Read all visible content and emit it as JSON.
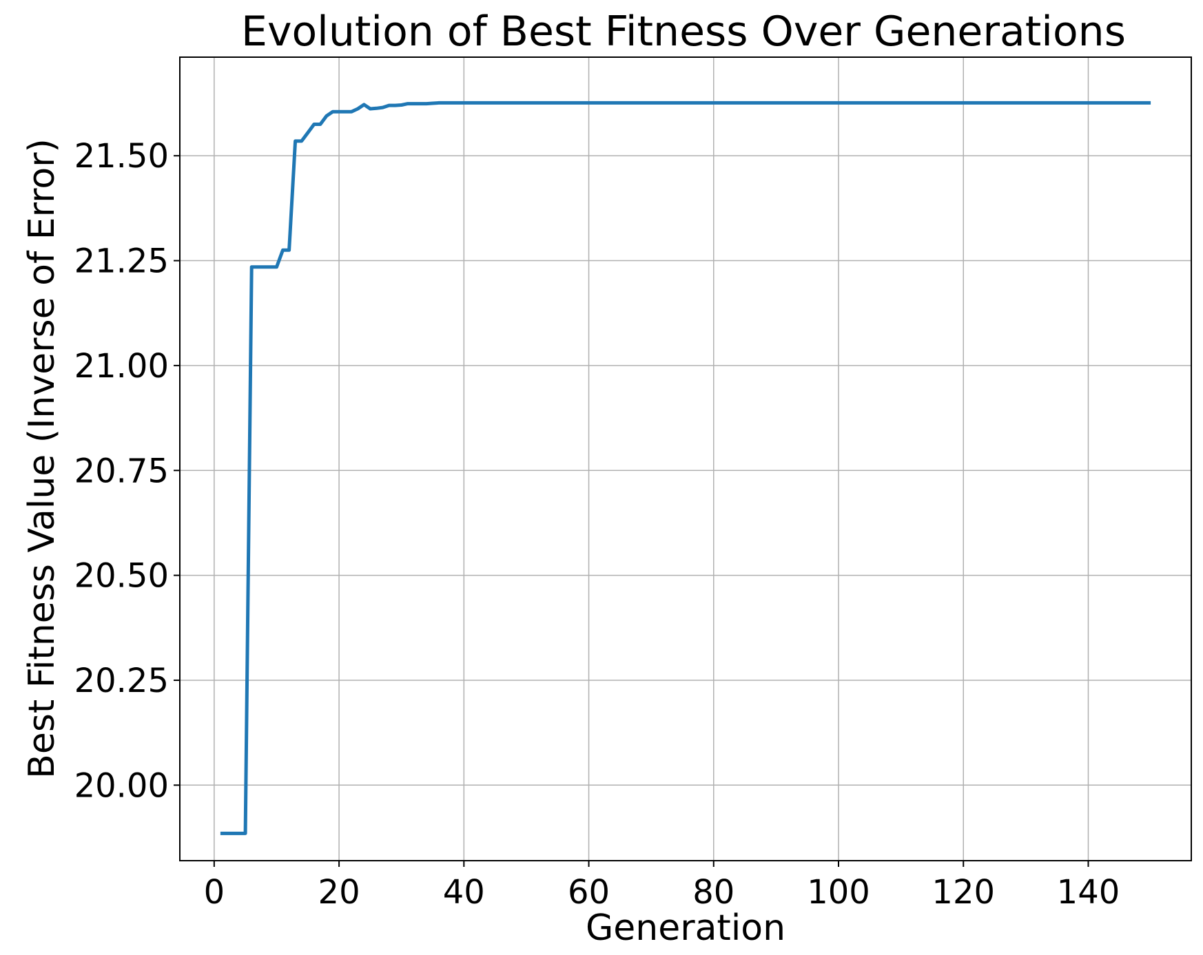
{
  "chart_data": {
    "type": "line",
    "title": "Evolution of Best Fitness Over Generations",
    "xlabel": "Generation",
    "ylabel": "Best Fitness Value (Inverse of Error)",
    "xlim": [
      -5.5,
      156.5
    ],
    "ylim": [
      19.82,
      21.735
    ],
    "xticks": [
      0,
      20,
      40,
      60,
      80,
      100,
      120,
      140
    ],
    "xtick_labels": [
      "0",
      "20",
      "40",
      "60",
      "80",
      "100",
      "120",
      "140"
    ],
    "yticks": [
      20.0,
      20.25,
      20.5,
      20.75,
      21.0,
      21.25,
      21.5
    ],
    "ytick_labels": [
      "20.00",
      "20.25",
      "20.50",
      "20.75",
      "21.00",
      "21.25",
      "21.50"
    ],
    "grid": true,
    "legend": "none",
    "colors": {
      "series": "#1f77b4",
      "grid": "#b0b0b0",
      "axes": "#000000"
    },
    "series": [
      {
        "x": [
          1,
          2,
          3,
          4,
          5,
          6,
          7,
          8,
          9,
          10,
          11,
          12,
          13,
          14,
          15,
          16,
          17,
          18,
          19,
          20,
          21,
          22,
          23,
          24,
          25,
          26,
          27,
          28,
          29,
          30,
          31,
          32,
          33,
          34,
          35,
          36,
          37,
          150
        ],
        "y": [
          19.885,
          19.885,
          19.885,
          19.885,
          19.885,
          21.235,
          21.235,
          21.235,
          21.235,
          21.235,
          21.275,
          21.275,
          21.535,
          21.535,
          21.555,
          21.575,
          21.575,
          21.595,
          21.605,
          21.605,
          21.605,
          21.605,
          21.612,
          21.622,
          21.612,
          21.613,
          21.615,
          21.62,
          21.62,
          21.621,
          21.624,
          21.624,
          21.624,
          21.624,
          21.625,
          21.626,
          21.626,
          21.626
        ]
      }
    ]
  }
}
